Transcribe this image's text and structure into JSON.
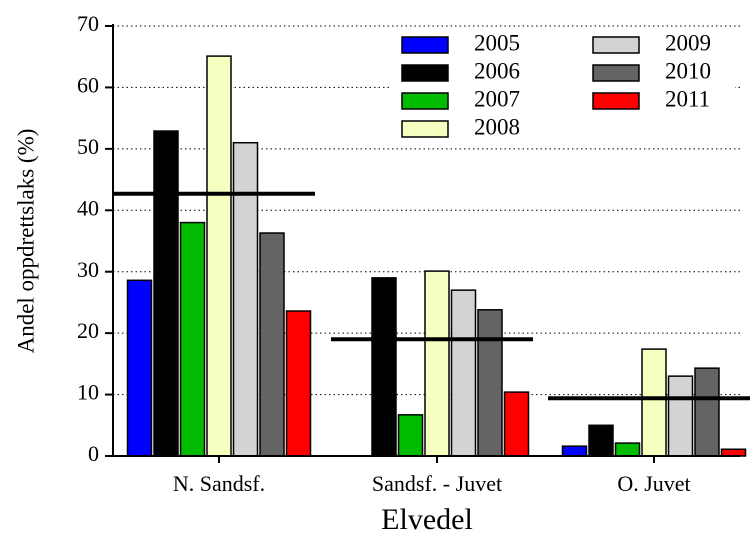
{
  "chart_data": {
    "type": "bar",
    "x_label": "Elvedel",
    "y_label": "Andel oppdrettslaks (%)",
    "categories": [
      "N. Sandsf.",
      "Sandsf. - Juvet",
      "O. Juvet"
    ],
    "series": [
      {
        "name": "2005",
        "color": "#0000ff",
        "values": [
          28.6,
          null,
          1.6
        ]
      },
      {
        "name": "2006",
        "color": "#000000",
        "values": [
          52.9,
          29,
          5
        ]
      },
      {
        "name": "2007",
        "color": "#00bb00",
        "values": [
          38,
          6.7,
          2.1
        ]
      },
      {
        "name": "2008",
        "color": "#f5ffc0",
        "values": [
          65.1,
          30.1,
          17.4
        ]
      },
      {
        "name": "2009",
        "color": "#d3d3d3",
        "values": [
          51,
          27,
          13
        ]
      },
      {
        "name": "2010",
        "color": "#646464",
        "values": [
          36.3,
          23.8,
          14.3
        ]
      },
      {
        "name": "2011",
        "color": "#ff0000",
        "values": [
          23.6,
          10.4,
          1.1
        ]
      }
    ],
    "means": [
      42.7,
      19,
      9.4
    ],
    "ylim": [
      0,
      70
    ],
    "yticks": [
      0,
      10,
      20,
      30,
      40,
      50,
      60,
      70
    ],
    "grid": true
  }
}
